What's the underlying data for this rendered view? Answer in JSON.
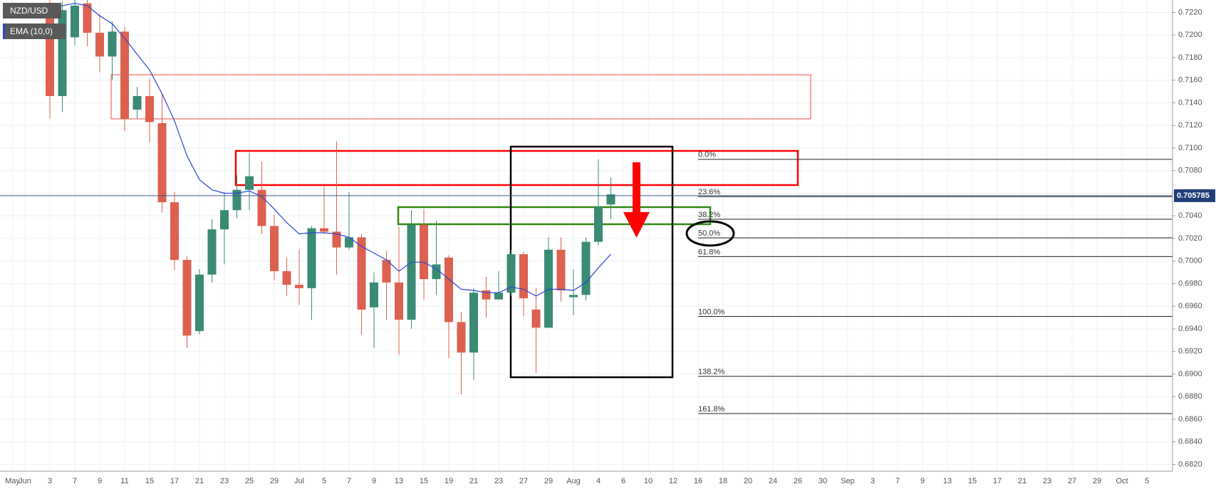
{
  "chart_data": {
    "type": "candlestick",
    "categories": [
      "May",
      "Jun",
      null,
      "3",
      null,
      "7",
      null,
      "9",
      null,
      "11",
      null,
      "15",
      null,
      "17",
      null,
      "21",
      null,
      "23",
      null,
      "25",
      null,
      "29",
      null,
      "Jul",
      null,
      "5",
      null,
      "7",
      null,
      "9",
      null,
      "13",
      null,
      "15",
      null,
      "19",
      null,
      "21",
      null,
      "23",
      null,
      "27",
      null,
      "29",
      null,
      "Aug",
      null,
      "4",
      null,
      "6",
      null,
      "10",
      null,
      "12",
      null,
      "16",
      null,
      "18",
      null,
      "20",
      null,
      "24",
      null,
      "26",
      null,
      "30",
      null,
      "Sep",
      null,
      "3",
      null,
      "7",
      null,
      "9",
      null,
      "13",
      null,
      "15",
      null,
      "17",
      null,
      "21",
      null,
      "23",
      null,
      "27",
      null,
      "29",
      null,
      "Oct",
      null,
      "5",
      null
    ],
    "series": [
      {
        "name": "NZD/USD",
        "up_color": "#3a8a74",
        "down_color": "#dc6150",
        "open": [
          null,
          null,
          null,
          0.7225,
          0.7146,
          0.7198,
          0.7228,
          0.7202,
          0.7181,
          0.7203,
          0.7134,
          0.7146,
          0.7122,
          0.7052,
          0.7001,
          0.6938,
          0.6988,
          0.7028,
          0.7045,
          0.7063,
          0.7063,
          0.7031,
          0.6991,
          0.6979,
          0.6976,
          0.7029,
          0.7026,
          0.7012,
          0.7021,
          0.6959,
          0.7001,
          0.6981,
          0.6948,
          0.7032,
          0.6984,
          0.7003,
          0.6946,
          0.6919,
          0.6974,
          0.6966,
          0.6972,
          0.7006,
          0.6957,
          0.6941,
          0.701,
          0.6968,
          0.697,
          0.7017,
          0.705,
          null,
          null,
          null,
          null,
          null,
          null,
          null,
          null,
          null,
          null,
          null,
          null,
          null,
          null,
          null,
          null,
          null,
          null,
          null,
          null,
          null,
          null,
          null,
          null,
          null,
          null,
          null,
          null,
          null,
          null,
          null,
          null,
          null,
          null,
          null,
          null,
          null,
          null,
          null,
          null,
          null,
          null,
          null,
          null
        ],
        "high": [
          null,
          null,
          null,
          0.7235,
          0.723,
          0.7232,
          0.7233,
          0.7219,
          0.7212,
          0.7207,
          0.7154,
          0.7161,
          0.7148,
          0.7061,
          0.7004,
          0.6993,
          0.7037,
          0.7061,
          0.7076,
          0.7096,
          0.7088,
          0.7041,
          0.7003,
          0.701,
          0.7031,
          0.7066,
          0.7106,
          0.7061,
          0.7024,
          0.699,
          0.7009,
          0.703,
          0.7045,
          0.7046,
          0.7036,
          0.7005,
          0.6955,
          0.6976,
          0.6986,
          0.6991,
          0.701,
          0.7008,
          0.6976,
          0.7021,
          0.7021,
          0.6993,
          0.7021,
          0.709,
          0.7074,
          null,
          null,
          null,
          null,
          null,
          null,
          null,
          null,
          null,
          null,
          null,
          null,
          null,
          null,
          null,
          null,
          null,
          null,
          null,
          null,
          null,
          null,
          null,
          null,
          null,
          null,
          null,
          null,
          null,
          null,
          null,
          null,
          null,
          null,
          null,
          null,
          null,
          null,
          null,
          null,
          null,
          null,
          null,
          null
        ],
        "low": [
          null,
          null,
          null,
          0.7126,
          0.7132,
          0.7191,
          0.719,
          0.7167,
          0.716,
          0.7115,
          0.7126,
          0.7105,
          0.7043,
          0.6992,
          0.6923,
          0.6935,
          0.6981,
          0.6997,
          0.7038,
          0.7045,
          0.7024,
          0.6983,
          0.6969,
          0.6961,
          0.6948,
          0.7024,
          0.6988,
          0.701,
          0.6935,
          0.6923,
          0.6948,
          0.6917,
          0.694,
          0.6966,
          0.697,
          0.6914,
          0.6882,
          0.6895,
          0.695,
          0.6966,
          0.6969,
          0.6951,
          0.6901,
          0.6941,
          0.6964,
          0.6952,
          0.6965,
          0.7014,
          0.7037,
          null,
          null,
          null,
          null,
          null,
          null,
          null,
          null,
          null,
          null,
          null,
          null,
          null,
          null,
          null,
          null,
          null,
          null,
          null,
          null,
          null,
          null,
          null,
          null,
          null,
          null,
          null,
          null,
          null,
          null,
          null,
          null,
          null,
          null,
          null,
          null,
          null,
          null,
          null,
          null,
          null,
          null,
          null,
          null
        ],
        "close": [
          null,
          null,
          null,
          0.7146,
          0.7222,
          0.7226,
          0.7202,
          0.7181,
          0.7203,
          0.7126,
          0.7146,
          0.7123,
          0.7052,
          0.7001,
          0.6934,
          0.6988,
          0.7028,
          0.7045,
          0.7063,
          0.7075,
          0.7031,
          0.6991,
          0.6979,
          0.6976,
          0.7029,
          0.7026,
          0.7012,
          0.7021,
          0.6957,
          0.6981,
          0.6981,
          0.6948,
          0.7032,
          0.6984,
          0.6997,
          0.6946,
          0.6919,
          0.6972,
          0.6966,
          0.6972,
          0.7006,
          0.6967,
          0.6941,
          0.701,
          0.6974,
          0.697,
          0.7017,
          0.7048,
          0.7059,
          null,
          null,
          null,
          null,
          null,
          null,
          null,
          null,
          null,
          null,
          null,
          null,
          null,
          null,
          null,
          null,
          null,
          null,
          null,
          null,
          null,
          null,
          null,
          null,
          null,
          null,
          null,
          null,
          null,
          null,
          null,
          null,
          null,
          null,
          null,
          null,
          null,
          null,
          null,
          null,
          null,
          null,
          null,
          null
        ]
      },
      {
        "name": "EMA (10,0)",
        "type": "line",
        "color": "#2a45d6",
        "values": [
          null,
          null,
          null,
          0.7224,
          0.7226,
          0.7228,
          0.7226,
          0.7217,
          0.721,
          0.7197,
          0.7183,
          0.7169,
          0.7148,
          0.7124,
          0.7093,
          0.7072,
          0.7063,
          0.706,
          0.706,
          0.7062,
          0.7057,
          0.7046,
          0.7034,
          0.7024,
          0.7025,
          0.7025,
          0.7024,
          0.7021,
          0.7013,
          0.7007,
          0.7001,
          0.6991,
          0.6999,
          0.6999,
          0.6993,
          0.6984,
          0.6975,
          0.6974,
          0.6972,
          0.6972,
          0.6977,
          0.6975,
          0.6969,
          0.6975,
          0.6975,
          0.6974,
          0.6981,
          0.6994,
          0.7006,
          null,
          null,
          null,
          null,
          null,
          null,
          null,
          null,
          null,
          null,
          null,
          null,
          null,
          null,
          null,
          null,
          null,
          null,
          null,
          null,
          null,
          null,
          null,
          null,
          null,
          null,
          null,
          null,
          null,
          null,
          null,
          null,
          null,
          null,
          null,
          null,
          null,
          null,
          null,
          null,
          null,
          null,
          null,
          null
        ]
      }
    ],
    "ylim": [
      0.6814,
      0.7231
    ],
    "yticks": [
      {
        "value": 0.682,
        "label": "0.6820"
      },
      {
        "value": 0.684,
        "label": "0.6840"
      },
      {
        "value": 0.686,
        "label": "0.6860"
      },
      {
        "value": 0.688,
        "label": "0.6880"
      },
      {
        "value": 0.69,
        "label": "0.6900"
      },
      {
        "value": 0.692,
        "label": "0.6920"
      },
      {
        "value": 0.694,
        "label": "0.6940"
      },
      {
        "value": 0.696,
        "label": "0.6960"
      },
      {
        "value": 0.698,
        "label": "0.6980"
      },
      {
        "value": 0.7,
        "label": "0.7000"
      },
      {
        "value": 0.702,
        "label": "0.7020"
      },
      {
        "value": 0.704,
        "label": "0.7040"
      },
      {
        "value": 0.706,
        "label": "0.7060"
      },
      {
        "value": 0.708,
        "label": "0.7080"
      },
      {
        "value": 0.71,
        "label": "0.7100"
      },
      {
        "value": 0.712,
        "label": "0.7120"
      },
      {
        "value": 0.714,
        "label": "0.7140"
      },
      {
        "value": 0.716,
        "label": "0.7160"
      },
      {
        "value": 0.718,
        "label": "0.7180"
      },
      {
        "value": 0.72,
        "label": "0.7200"
      },
      {
        "value": 0.722,
        "label": "0.7220"
      }
    ],
    "grid": true,
    "last_price": 0.705785,
    "fib_levels": [
      {
        "label": "0.0%",
        "value": 0.709
      },
      {
        "label": "23.6%",
        "value": 0.7057
      },
      {
        "label": "38.2%",
        "value": 0.7037
      },
      {
        "label": "50.0%",
        "value": 0.70205
      },
      {
        "label": "61.8%",
        "value": 0.7004
      },
      {
        "label": "100.0%",
        "value": 0.6951
      },
      {
        "label": "138.2%",
        "value": 0.6898
      },
      {
        "label": "161.8%",
        "value": 0.6865
      }
    ]
  }
}
